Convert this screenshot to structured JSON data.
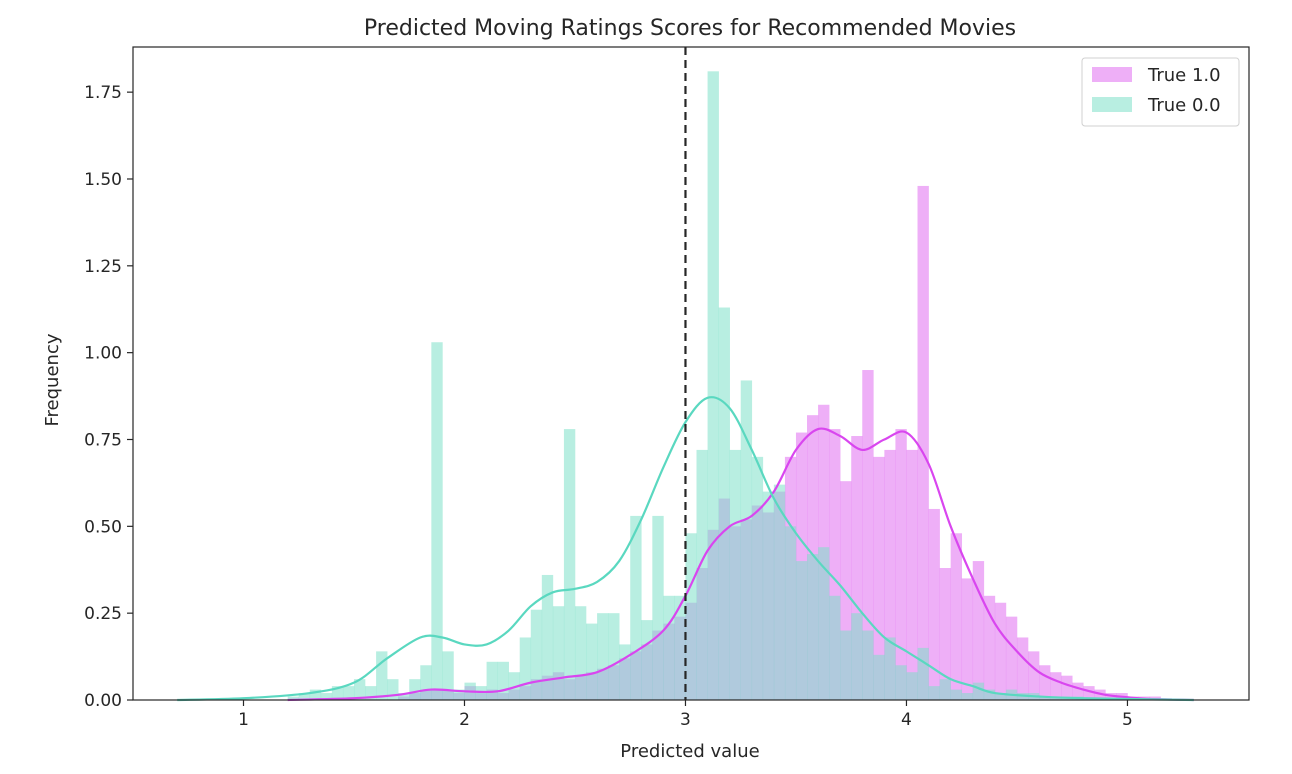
{
  "chart_data": {
    "type": "histogram",
    "title": "Predicted Moving Ratings Scores for Recommended Movies",
    "xlabel": "Predicted value",
    "ylabel": "Frequency",
    "xlim": [
      0.5,
      5.55
    ],
    "ylim": [
      0,
      1.88
    ],
    "x_ticks": [
      1,
      2,
      3,
      4,
      5
    ],
    "x_tick_labels": [
      "1",
      "2",
      "3",
      "4",
      "5"
    ],
    "y_ticks": [
      0,
      0.25,
      0.5,
      0.75,
      1.0,
      1.25,
      1.5,
      1.75
    ],
    "y_tick_labels": [
      "0.00",
      "0.25",
      "0.50",
      "0.75",
      "1.00",
      "1.25",
      "1.50",
      "1.75"
    ],
    "grid": false,
    "legend_position": "top-right",
    "threshold_line": {
      "x": 3.0,
      "style": "dashed",
      "color": "#262626"
    },
    "series": [
      {
        "name": "True 1.0",
        "color": "#e06ef0",
        "kde_color": "#d946ef",
        "bin_width": 0.05,
        "bins": [
          [
            1.7,
            0.01
          ],
          [
            1.75,
            0.02
          ],
          [
            1.8,
            0.03
          ],
          [
            1.85,
            0.03
          ],
          [
            1.9,
            0.03
          ],
          [
            1.95,
            0.02
          ],
          [
            2.0,
            0.04
          ],
          [
            2.05,
            0.02
          ],
          [
            2.1,
            0.03
          ],
          [
            2.15,
            0.02
          ],
          [
            2.2,
            0.03
          ],
          [
            2.25,
            0.04
          ],
          [
            2.3,
            0.06
          ],
          [
            2.35,
            0.07
          ],
          [
            2.4,
            0.08
          ],
          [
            2.45,
            0.06
          ],
          [
            2.5,
            0.07
          ],
          [
            2.55,
            0.08
          ],
          [
            2.6,
            0.09
          ],
          [
            2.65,
            0.1
          ],
          [
            2.7,
            0.12
          ],
          [
            2.75,
            0.14
          ],
          [
            2.8,
            0.16
          ],
          [
            2.85,
            0.2
          ],
          [
            2.9,
            0.22
          ],
          [
            2.95,
            0.24
          ],
          [
            3.0,
            0.28
          ],
          [
            3.05,
            0.38
          ],
          [
            3.1,
            0.49
          ],
          [
            3.15,
            0.58
          ],
          [
            3.2,
            0.5
          ],
          [
            3.25,
            0.52
          ],
          [
            3.3,
            0.56
          ],
          [
            3.35,
            0.54
          ],
          [
            3.4,
            0.6
          ],
          [
            3.45,
            0.7
          ],
          [
            3.5,
            0.77
          ],
          [
            3.55,
            0.82
          ],
          [
            3.6,
            0.85
          ],
          [
            3.65,
            0.78
          ],
          [
            3.7,
            0.63
          ],
          [
            3.75,
            0.76
          ],
          [
            3.8,
            0.95
          ],
          [
            3.85,
            0.7
          ],
          [
            3.9,
            0.72
          ],
          [
            3.95,
            0.78
          ],
          [
            4.0,
            0.72
          ],
          [
            4.05,
            1.48
          ],
          [
            4.1,
            0.55
          ],
          [
            4.15,
            0.38
          ],
          [
            4.2,
            0.48
          ],
          [
            4.25,
            0.35
          ],
          [
            4.3,
            0.4
          ],
          [
            4.35,
            0.3
          ],
          [
            4.4,
            0.28
          ],
          [
            4.45,
            0.24
          ],
          [
            4.5,
            0.18
          ],
          [
            4.55,
            0.14
          ],
          [
            4.6,
            0.1
          ],
          [
            4.65,
            0.08
          ],
          [
            4.7,
            0.07
          ],
          [
            4.75,
            0.05
          ],
          [
            4.8,
            0.04
          ],
          [
            4.85,
            0.03
          ],
          [
            4.9,
            0.02
          ],
          [
            4.95,
            0.02
          ],
          [
            5.0,
            0.01
          ],
          [
            5.05,
            0.01
          ],
          [
            5.1,
            0.01
          ],
          [
            5.15,
            0.005
          ]
        ],
        "kde": [
          [
            1.2,
            0.0
          ],
          [
            1.5,
            0.005
          ],
          [
            1.7,
            0.015
          ],
          [
            1.85,
            0.03
          ],
          [
            2.0,
            0.025
          ],
          [
            2.15,
            0.025
          ],
          [
            2.3,
            0.05
          ],
          [
            2.45,
            0.065
          ],
          [
            2.6,
            0.08
          ],
          [
            2.75,
            0.13
          ],
          [
            2.9,
            0.2
          ],
          [
            3.0,
            0.3
          ],
          [
            3.1,
            0.43
          ],
          [
            3.2,
            0.5
          ],
          [
            3.3,
            0.53
          ],
          [
            3.4,
            0.6
          ],
          [
            3.5,
            0.72
          ],
          [
            3.6,
            0.78
          ],
          [
            3.7,
            0.76
          ],
          [
            3.8,
            0.72
          ],
          [
            3.9,
            0.75
          ],
          [
            4.0,
            0.77
          ],
          [
            4.1,
            0.68
          ],
          [
            4.2,
            0.5
          ],
          [
            4.3,
            0.35
          ],
          [
            4.4,
            0.22
          ],
          [
            4.5,
            0.14
          ],
          [
            4.6,
            0.08
          ],
          [
            4.7,
            0.05
          ],
          [
            4.8,
            0.03
          ],
          [
            4.9,
            0.015
          ],
          [
            5.0,
            0.008
          ],
          [
            5.1,
            0.003
          ],
          [
            5.3,
            0.0
          ]
        ]
      },
      {
        "name": "True 0.0",
        "color": "#7ee0c8",
        "kde_color": "#5ad8c0",
        "bin_width": 0.05,
        "bins": [
          [
            1.2,
            0.01
          ],
          [
            1.25,
            0.02
          ],
          [
            1.3,
            0.03
          ],
          [
            1.35,
            0.02
          ],
          [
            1.4,
            0.04
          ],
          [
            1.45,
            0.04
          ],
          [
            1.5,
            0.06
          ],
          [
            1.55,
            0.04
          ],
          [
            1.6,
            0.14
          ],
          [
            1.65,
            0.06
          ],
          [
            1.7,
            0.02
          ],
          [
            1.75,
            0.06
          ],
          [
            1.8,
            0.1
          ],
          [
            1.85,
            1.03
          ],
          [
            1.9,
            0.14
          ],
          [
            1.95,
            0.03
          ],
          [
            2.0,
            0.05
          ],
          [
            2.05,
            0.04
          ],
          [
            2.1,
            0.11
          ],
          [
            2.15,
            0.11
          ],
          [
            2.2,
            0.08
          ],
          [
            2.25,
            0.18
          ],
          [
            2.3,
            0.26
          ],
          [
            2.35,
            0.36
          ],
          [
            2.4,
            0.27
          ],
          [
            2.45,
            0.78
          ],
          [
            2.5,
            0.27
          ],
          [
            2.55,
            0.22
          ],
          [
            2.6,
            0.25
          ],
          [
            2.65,
            0.25
          ],
          [
            2.7,
            0.16
          ],
          [
            2.75,
            0.53
          ],
          [
            2.8,
            0.23
          ],
          [
            2.85,
            0.53
          ],
          [
            2.9,
            0.3
          ],
          [
            2.95,
            0.3
          ],
          [
            3.0,
            0.48
          ],
          [
            3.05,
            0.72
          ],
          [
            3.1,
            1.81
          ],
          [
            3.15,
            1.13
          ],
          [
            3.2,
            0.72
          ],
          [
            3.25,
            0.92
          ],
          [
            3.3,
            0.7
          ],
          [
            3.35,
            0.6
          ],
          [
            3.4,
            0.62
          ],
          [
            3.45,
            0.5
          ],
          [
            3.5,
            0.4
          ],
          [
            3.55,
            0.42
          ],
          [
            3.6,
            0.44
          ],
          [
            3.65,
            0.3
          ],
          [
            3.7,
            0.2
          ],
          [
            3.75,
            0.25
          ],
          [
            3.8,
            0.2
          ],
          [
            3.85,
            0.13
          ],
          [
            3.9,
            0.18
          ],
          [
            3.95,
            0.1
          ],
          [
            4.0,
            0.08
          ],
          [
            4.05,
            0.15
          ],
          [
            4.1,
            0.04
          ],
          [
            4.15,
            0.06
          ],
          [
            4.2,
            0.03
          ],
          [
            4.25,
            0.02
          ],
          [
            4.3,
            0.05
          ],
          [
            4.35,
            0.03
          ],
          [
            4.4,
            0.02
          ],
          [
            4.45,
            0.03
          ],
          [
            4.5,
            0.02
          ],
          [
            4.55,
            0.02
          ],
          [
            4.6,
            0.01
          ],
          [
            4.65,
            0.01
          ],
          [
            4.7,
            0.01
          ],
          [
            4.75,
            0.01
          ]
        ],
        "kde": [
          [
            0.7,
            0.0
          ],
          [
            1.0,
            0.005
          ],
          [
            1.3,
            0.02
          ],
          [
            1.5,
            0.05
          ],
          [
            1.65,
            0.12
          ],
          [
            1.8,
            0.18
          ],
          [
            1.9,
            0.18
          ],
          [
            2.0,
            0.16
          ],
          [
            2.1,
            0.16
          ],
          [
            2.2,
            0.2
          ],
          [
            2.3,
            0.27
          ],
          [
            2.4,
            0.31
          ],
          [
            2.5,
            0.32
          ],
          [
            2.6,
            0.34
          ],
          [
            2.7,
            0.4
          ],
          [
            2.8,
            0.52
          ],
          [
            2.9,
            0.67
          ],
          [
            3.0,
            0.8
          ],
          [
            3.1,
            0.87
          ],
          [
            3.2,
            0.84
          ],
          [
            3.3,
            0.72
          ],
          [
            3.4,
            0.58
          ],
          [
            3.5,
            0.48
          ],
          [
            3.6,
            0.4
          ],
          [
            3.7,
            0.33
          ],
          [
            3.8,
            0.25
          ],
          [
            3.9,
            0.18
          ],
          [
            4.0,
            0.14
          ],
          [
            4.1,
            0.1
          ],
          [
            4.2,
            0.06
          ],
          [
            4.3,
            0.04
          ],
          [
            4.4,
            0.02
          ],
          [
            4.6,
            0.01
          ],
          [
            4.8,
            0.005
          ],
          [
            5.3,
            0.0
          ]
        ]
      }
    ]
  }
}
